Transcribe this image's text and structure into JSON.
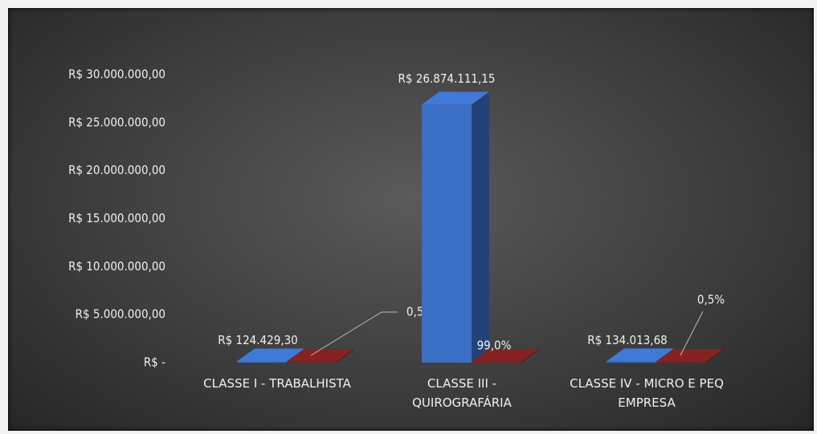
{
  "chart_data": {
    "type": "bar3d",
    "categories": [
      "CLASSE I - TRABALHISTA",
      "CLASSE III - QUIROGRAFÁRIA",
      "CLASSE IV - MICRO E PEQ EMPRESA"
    ],
    "series": [
      {
        "color": "#3a6fc4",
        "values": [
          124429.3,
          26874111.15,
          134013.68
        ],
        "value_labels": [
          "R$ 124.429,30",
          "R$ 26.874.111,15",
          "R$ 134.013,68"
        ]
      },
      {
        "color": "#7a1f1f",
        "values": [
          0.5,
          99.0,
          0.5
        ],
        "value_labels": [
          "0,5%",
          "99,0%",
          "0,5%"
        ]
      }
    ],
    "ylim": [
      0,
      30000000
    ],
    "yticks": [
      {
        "value": 0,
        "label": "R$ -"
      },
      {
        "value": 5000000,
        "label": "R$ 5.000.000,00"
      },
      {
        "value": 10000000,
        "label": "R$ 10.000.000,00"
      },
      {
        "value": 15000000,
        "label": "R$ 15.000.000,00"
      },
      {
        "value": 20000000,
        "label": "R$ 20.000.000,00"
      },
      {
        "value": 25000000,
        "label": "R$ 25.000.000,00"
      },
      {
        "value": 30000000,
        "label": "R$ 30.000.000,00"
      }
    ]
  }
}
